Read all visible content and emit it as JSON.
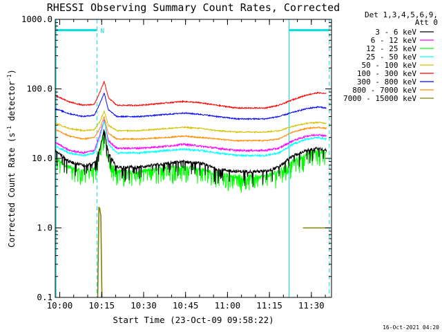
{
  "chart_data": {
    "type": "line",
    "title": "RHESSI Observing Summary Count Rates, Corrected",
    "xlabel": "Start Time (23-Oct-09 09:58:22)",
    "ylabel_main": "Corrected Count Rate (s",
    "ylabel_sup1": "-1",
    "ylabel_mid": " detector",
    "ylabel_sup2": "-1",
    "ylabel_end": ")",
    "footer": "16-Oct-2021 04:20",
    "legend_header": [
      "Det 1,3,4,5,6,9,",
      "Att 0"
    ],
    "y_scale": "log",
    "ylim": [
      0.1,
      1000
    ],
    "xlim_minutes": [
      0,
      98.8
    ],
    "y_ticks": [
      {
        "v": 1000,
        "label": "1000.0"
      },
      {
        "v": 100,
        "label": "100.0"
      },
      {
        "v": 10,
        "label": "10.0"
      },
      {
        "v": 1,
        "label": "1.0"
      },
      {
        "v": 0.1,
        "label": "0.1"
      }
    ],
    "x_ticks": [
      {
        "m": 1.6,
        "label": "10:00"
      },
      {
        "m": 16.6,
        "label": "10:15"
      },
      {
        "m": 31.6,
        "label": "10:30"
      },
      {
        "m": 46.6,
        "label": "10:45"
      },
      {
        "m": 61.6,
        "label": "11:00"
      },
      {
        "m": 76.6,
        "label": "11:15"
      },
      {
        "m": 91.6,
        "label": "11:30"
      }
    ],
    "annotation_label": "N",
    "annotations": [
      {
        "type": "solid",
        "m": 0.3
      },
      {
        "type": "dashed",
        "m": 14.9
      },
      {
        "type": "solid",
        "m": 83.6
      },
      {
        "type": "dashed",
        "m": 98.0
      }
    ],
    "bars": [
      {
        "from": 0.3,
        "to": 14.9,
        "y": 700
      },
      {
        "from": 83.6,
        "to": 98.0,
        "y": 700
      }
    ],
    "series": [
      {
        "name": "3 - 6 keV",
        "color": "#000000",
        "noise": 0.05,
        "spikes": 0.12,
        "x": [
          0,
          5,
          10,
          14,
          16,
          17.5,
          19,
          22,
          30,
          40,
          46,
          52,
          58,
          65,
          75,
          80,
          85,
          90,
          94,
          97
        ],
        "y": [
          13,
          9,
          8,
          8.5,
          14,
          26,
          12,
          7.5,
          7.5,
          8.5,
          9,
          8.5,
          7,
          6.5,
          6.5,
          7.5,
          11,
          13,
          14,
          13
        ]
      },
      {
        "name": "6 - 12 keV",
        "color": "#ff00ff",
        "noise": 0.03,
        "spikes": 0,
        "x": [
          0,
          5,
          10,
          14,
          16,
          17.5,
          19,
          22,
          30,
          40,
          46,
          52,
          58,
          65,
          75,
          80,
          85,
          90,
          94,
          97
        ],
        "y": [
          17,
          13,
          12,
          13,
          22,
          36,
          18,
          14,
          14,
          15,
          16,
          15,
          14,
          13,
          13,
          14,
          18,
          21,
          22,
          21
        ]
      },
      {
        "name": "12 - 25 keV",
        "color": "#00ff00",
        "noise": 0.07,
        "spikes": 0.25,
        "x": [
          0,
          5,
          10,
          14,
          16,
          17.5,
          19,
          22,
          30,
          40,
          46,
          52,
          58,
          65,
          75,
          80,
          85,
          90,
          94,
          97
        ],
        "y": [
          10,
          7.5,
          6.5,
          7,
          13,
          24,
          10,
          6.5,
          6.5,
          7.5,
          7.5,
          7,
          6,
          5.5,
          5.5,
          6.5,
          9,
          11.5,
          13,
          12
        ]
      },
      {
        "name": "25 - 50 keV",
        "color": "#00ffff",
        "noise": 0.03,
        "spikes": 0,
        "x": [
          0,
          5,
          10,
          14,
          16,
          17.5,
          19,
          22,
          30,
          40,
          46,
          52,
          58,
          65,
          75,
          80,
          85,
          90,
          94,
          97
        ],
        "y": [
          15,
          12,
          11,
          12,
          20,
          35,
          16,
          12,
          12,
          13,
          13.5,
          13,
          12,
          11,
          11,
          12,
          16,
          19,
          20,
          19
        ]
      },
      {
        "name": "50 - 100 keV",
        "color": "#d4c000",
        "noise": 0.02,
        "spikes": 0,
        "x": [
          0,
          5,
          10,
          14,
          16,
          17.5,
          19,
          22,
          30,
          40,
          46,
          52,
          58,
          65,
          75,
          80,
          85,
          90,
          94,
          97
        ],
        "y": [
          32,
          27,
          25,
          26,
          34,
          48,
          30,
          25,
          25,
          27,
          28,
          27,
          25,
          24,
          24,
          25,
          29,
          32,
          33,
          32
        ]
      },
      {
        "name": "100 - 300 keV",
        "color": "#ff0000",
        "noise": 0.02,
        "spikes": 0,
        "x": [
          0,
          5,
          10,
          14,
          16,
          17.5,
          19,
          22,
          30,
          40,
          46,
          52,
          58,
          65,
          75,
          80,
          85,
          90,
          94,
          97
        ],
        "y": [
          80,
          65,
          58,
          60,
          90,
          128,
          75,
          58,
          58,
          63,
          66,
          63,
          58,
          53,
          53,
          58,
          70,
          82,
          88,
          85
        ]
      },
      {
        "name": "300 - 800 keV",
        "color": "#0000ff",
        "noise": 0.02,
        "spikes": 0,
        "x": [
          0,
          5,
          10,
          14,
          16,
          17.5,
          19,
          22,
          30,
          40,
          46,
          52,
          58,
          65,
          75,
          80,
          85,
          90,
          94,
          97
        ],
        "y": [
          52,
          44,
          40,
          42,
          62,
          88,
          50,
          40,
          40,
          43,
          45,
          43,
          40,
          37,
          37,
          40,
          46,
          52,
          55,
          53
        ]
      },
      {
        "name": "800 - 7000 keV",
        "color": "#ff8c00",
        "noise": 0.02,
        "spikes": 0,
        "x": [
          0,
          5,
          10,
          14,
          16,
          17.5,
          19,
          22,
          30,
          40,
          46,
          52,
          58,
          65,
          75,
          80,
          85,
          90,
          94,
          97
        ],
        "y": [
          26,
          21,
          19,
          20,
          27,
          40,
          23,
          19,
          19,
          20,
          21,
          20,
          19,
          18,
          18,
          19,
          24,
          27,
          28,
          27
        ]
      },
      {
        "name": "7000 - 15000 keV",
        "color": "#808000",
        "noise": 0,
        "spikes": 0,
        "segments": [
          {
            "x": [
              15.2,
              15.6,
              15.9,
              16.3,
              16.7
            ],
            "y": [
              0.1,
              2.0,
              1.9,
              1.5,
              0.1
            ]
          },
          {
            "x": [
              88.6,
              97.8
            ],
            "y": [
              1.0,
              1.0
            ]
          }
        ]
      }
    ]
  }
}
